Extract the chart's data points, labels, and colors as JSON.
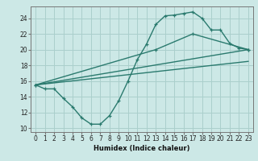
{
  "xlabel": "Humidex (Indice chaleur)",
  "ylabel": "",
  "background_color": "#cce8e6",
  "grid_color": "#aacfcc",
  "line_color": "#2a7a6e",
  "xlim": [
    -0.5,
    23.5
  ],
  "ylim": [
    9.5,
    25.5
  ],
  "xticks": [
    0,
    1,
    2,
    3,
    4,
    5,
    6,
    7,
    8,
    9,
    10,
    11,
    12,
    13,
    14,
    15,
    16,
    17,
    18,
    19,
    20,
    21,
    22,
    23
  ],
  "yticks": [
    10,
    12,
    14,
    16,
    18,
    20,
    22,
    24
  ],
  "line1_x": [
    0,
    1,
    2,
    3,
    4,
    5,
    6,
    7,
    8,
    9,
    10,
    11,
    12,
    13,
    14,
    15,
    16,
    17,
    18,
    19,
    20,
    21,
    22,
    23
  ],
  "line1_y": [
    15.5,
    15.0,
    15.0,
    13.8,
    12.7,
    11.3,
    10.5,
    10.5,
    11.6,
    13.5,
    16.0,
    18.7,
    20.7,
    23.2,
    24.3,
    24.4,
    24.6,
    24.8,
    24.0,
    22.5,
    22.5,
    20.8,
    20.2,
    20.0
  ],
  "line2_x": [
    0,
    13,
    17,
    23
  ],
  "line2_y": [
    15.5,
    20.0,
    22.0,
    20.0
  ],
  "line3_x": [
    0,
    23
  ],
  "line3_y": [
    15.5,
    20.0
  ],
  "line4_x": [
    0,
    23
  ],
  "line4_y": [
    15.5,
    18.5
  ],
  "marker_size": 3.0,
  "linewidth": 1.0,
  "xlabel_fontsize": 6.0,
  "tick_fontsize": 5.5
}
